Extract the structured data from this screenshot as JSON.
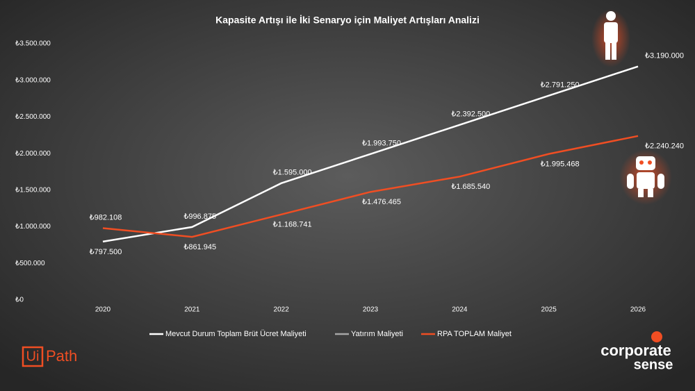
{
  "chart_data": {
    "type": "line",
    "title": "Kapasite Artışı ile İki Senaryo için Maliyet Artışları Analizi",
    "categories": [
      "2020",
      "2021",
      "2022",
      "2023",
      "2024",
      "2025",
      "2026"
    ],
    "series": [
      {
        "name": "Mevcut Durum Toplam Brüt Ücret Maliyeti",
        "color": "#ffffff",
        "values": [
          797500,
          996875,
          1595000,
          1993750,
          2392500,
          2791250,
          3190000
        ],
        "value_labels": [
          "₺797.500",
          "₺996.875",
          "₺1.595.000",
          "₺1.993.750",
          "₺2.392.500",
          "₺2.791.250",
          "₺3.190.000"
        ]
      },
      {
        "name": "Yatırım Maliyeti",
        "color": "#a6a6a6",
        "values": [
          null,
          null,
          null,
          null,
          null,
          null,
          null
        ]
      },
      {
        "name": "RPA TOPLAM Maliyet",
        "color": "#f04e23",
        "values": [
          982108,
          861945,
          1168741,
          1476465,
          1685540,
          1995468,
          2240240
        ],
        "value_labels": [
          "₺982.108",
          "₺861.945",
          "₺1.168.741",
          "₺1.476.465",
          "₺1.685.540",
          "₺1.995.468",
          "₺2.240.240"
        ]
      }
    ],
    "ylim": [
      0,
      3500000
    ],
    "yticks": [
      {
        "value": 0,
        "label": "₺0"
      },
      {
        "value": 500000,
        "label": "₺500.000"
      },
      {
        "value": 1000000,
        "label": "₺1.000.000"
      },
      {
        "value": 1500000,
        "label": "₺1.500.000"
      },
      {
        "value": 2000000,
        "label": "₺2.000.000"
      },
      {
        "value": 2500000,
        "label": "₺2.500.000"
      },
      {
        "value": 3000000,
        "label": "₺3.000.000"
      },
      {
        "value": 3500000,
        "label": "₺3.500.000"
      }
    ],
    "grid": false,
    "legend": "bottom"
  },
  "logos": {
    "ui": "Ui",
    "path": "Path",
    "corporate": "corporate",
    "sense": "sense"
  }
}
